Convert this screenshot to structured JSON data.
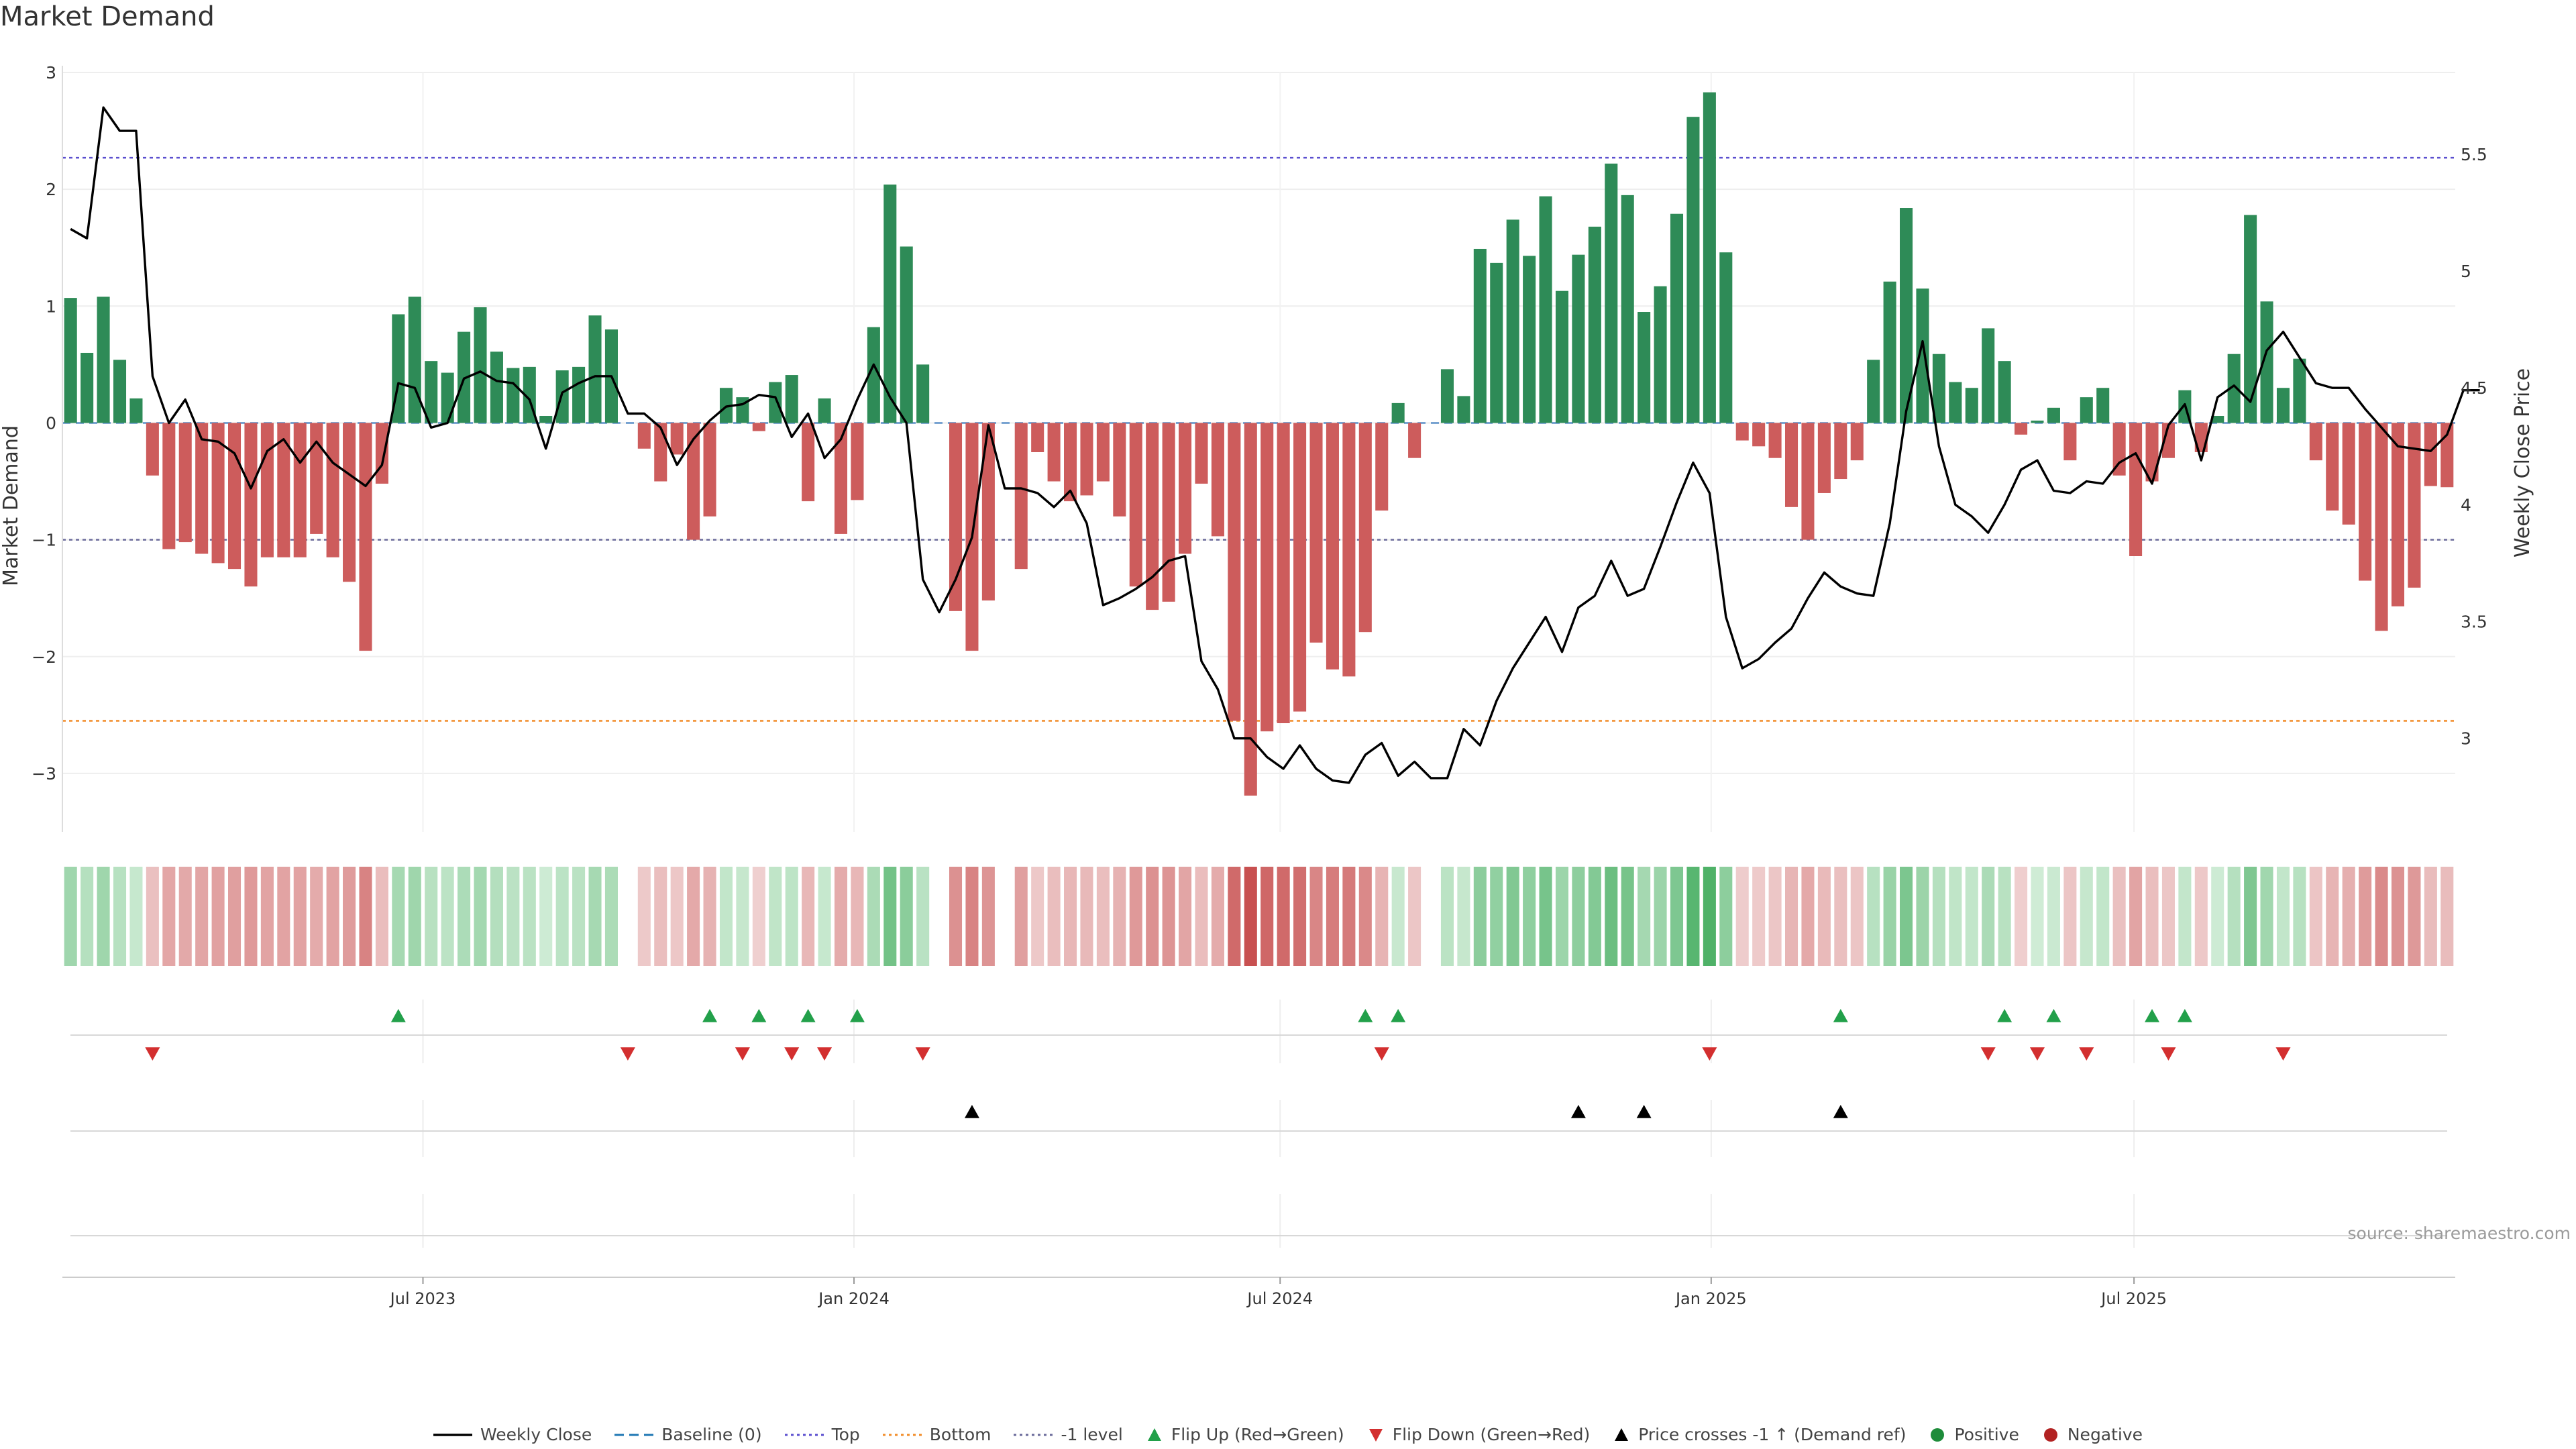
{
  "title": "Market Demand",
  "source": "source: sharemaestro.com",
  "colors": {
    "positive": "#2e8b57",
    "negative": "#cd5c5c",
    "price": "#000000",
    "top": "#5b4fcf",
    "bottom": "#f28c28",
    "minus_one": "#6a6a9a",
    "flip_up": "#22a04a",
    "flip_down": "#d32f2f",
    "cross": "#000000"
  },
  "legend": [
    {
      "key": "weekly-close",
      "label": "Weekly Close",
      "kind": "line",
      "color": "#000000"
    },
    {
      "key": "baseline",
      "label": "Baseline (0)",
      "kind": "dash",
      "color": "#1f77b4"
    },
    {
      "key": "top",
      "label": "Top",
      "kind": "dot",
      "color": "#5b4fcf"
    },
    {
      "key": "bottom",
      "label": "Bottom",
      "kind": "dot",
      "color": "#f28c28"
    },
    {
      "key": "minus-one",
      "label": "-1 level",
      "kind": "dot",
      "color": "#6a6a9a"
    },
    {
      "key": "flip-up",
      "label": "Flip Up (Red→Green)",
      "kind": "tri-up",
      "color": "#22a04a"
    },
    {
      "key": "flip-down",
      "label": "Flip Down (Green→Red)",
      "kind": "tri-down",
      "color": "#d32f2f"
    },
    {
      "key": "price-cross",
      "label": "Price crosses -1 ↑ (Demand ref)",
      "kind": "tri-up",
      "color": "#000000"
    },
    {
      "key": "positive",
      "label": "Positive",
      "kind": "circle",
      "color": "#1e8c3a"
    },
    {
      "key": "negative",
      "label": "Negative",
      "kind": "circle",
      "color": "#b22222"
    }
  ],
  "chart_data": {
    "type": "bar",
    "ylabel": "Market Demand",
    "y2label": "Weekly Close Price",
    "ylim": [
      -3.5,
      3.0
    ],
    "y2lim": [
      2.6,
      5.85
    ],
    "yticks": [
      3,
      2,
      1,
      0,
      -1,
      -2,
      -3
    ],
    "ytick_labels": [
      "3",
      "2",
      "1",
      "0",
      "−1",
      "−2",
      "−3"
    ],
    "y2ticks": [
      5.5,
      5,
      4.5,
      4,
      3.5,
      3
    ],
    "y2tick_labels": [
      "5.5",
      "5",
      "4.5",
      "4",
      "3.5",
      "3"
    ],
    "x_start": "2023-02-13",
    "x_end": "2025-10-20",
    "xticks": [
      {
        "label": "Jul 2023",
        "week": 22
      },
      {
        "label": "Jan 2024",
        "week": 48.3
      },
      {
        "label": "Jul 2024",
        "week": 74.3
      },
      {
        "label": "Jan 2025",
        "week": 100.6
      },
      {
        "label": "Jul 2025",
        "week": 126.4
      }
    ],
    "reference_lines": {
      "top": 2.27,
      "bottom": -2.55,
      "minus_one": -1.0,
      "baseline": 0
    },
    "demand": [
      1.07,
      0.6,
      1.08,
      0.54,
      0.21,
      -0.45,
      -1.08,
      -1.02,
      -1.12,
      -1.2,
      -1.25,
      -1.4,
      -1.15,
      -1.15,
      -1.15,
      -0.95,
      -1.15,
      -1.36,
      -1.95,
      -0.52,
      0.93,
      1.08,
      0.53,
      0.43,
      0.78,
      0.99,
      0.61,
      0.47,
      0.48,
      0.06,
      0.45,
      0.48,
      0.92,
      0.8,
      0,
      -0.22,
      -0.5,
      -0.27,
      -1.0,
      -0.8,
      0.3,
      0.22,
      -0.07,
      0.35,
      0.41,
      -0.67,
      0.21,
      -0.95,
      -0.66,
      0.82,
      2.04,
      1.51,
      0.5,
      0,
      -1.61,
      -1.95,
      -1.52,
      0,
      -1.25,
      -0.25,
      -0.5,
      -0.67,
      -0.62,
      -0.5,
      -0.8,
      -1.4,
      -1.6,
      -1.53,
      -1.12,
      -0.52,
      -0.97,
      -2.55,
      -3.19,
      -2.64,
      -2.57,
      -2.47,
      -1.88,
      -2.11,
      -2.17,
      -1.79,
      -0.75,
      0.17,
      -0.3,
      0,
      0.46,
      0.23,
      1.49,
      1.37,
      1.74,
      1.43,
      1.94,
      1.13,
      1.44,
      1.68,
      2.22,
      1.95,
      0.95,
      1.17,
      1.79,
      2.62,
      2.83,
      1.46,
      -0.15,
      -0.2,
      -0.3,
      -0.72,
      -1.0,
      -0.6,
      -0.48,
      -0.32,
      0.54,
      1.21,
      1.84,
      1.15,
      0.59,
      0.35,
      0.3,
      0.81,
      0.53,
      -0.1,
      0.02,
      0.13,
      -0.32,
      0.22,
      0.3,
      -0.45,
      -1.14,
      -0.5,
      -0.3,
      0.28,
      -0.25,
      0.06,
      0.59,
      1.78,
      1.04,
      0.3,
      0.55,
      -0.32,
      -0.75,
      -0.87,
      -1.35,
      -1.78,
      -1.57,
      -1.41,
      -0.54,
      -0.55
    ],
    "weekly_close": [
      5.18,
      5.14,
      5.7,
      5.6,
      5.6,
      4.55,
      4.35,
      4.45,
      4.28,
      4.27,
      4.22,
      4.07,
      4.23,
      4.28,
      4.18,
      4.27,
      4.18,
      4.13,
      4.08,
      4.17,
      4.52,
      4.5,
      4.33,
      4.35,
      4.54,
      4.57,
      4.53,
      4.52,
      4.45,
      4.24,
      4.48,
      4.52,
      4.55,
      4.55,
      4.39,
      4.39,
      4.33,
      4.17,
      4.28,
      4.36,
      4.42,
      4.43,
      4.47,
      4.46,
      4.29,
      4.39,
      4.2,
      4.28,
      4.45,
      4.6,
      4.46,
      4.35,
      3.68,
      3.54,
      3.68,
      3.86,
      4.34,
      4.07,
      4.07,
      4.05,
      3.99,
      4.06,
      3.92,
      3.57,
      3.6,
      3.64,
      3.69,
      3.76,
      3.78,
      3.33,
      3.21,
      3.0,
      3.0,
      2.92,
      2.87,
      2.97,
      2.87,
      2.82,
      2.81,
      2.93,
      2.98,
      2.84,
      2.9,
      2.83,
      2.83,
      3.04,
      2.97,
      3.16,
      3.3,
      3.41,
      3.52,
      3.37,
      3.56,
      3.61,
      3.76,
      3.61,
      3.64,
      3.82,
      4.01,
      4.18,
      4.05,
      3.52,
      3.3,
      3.34,
      3.41,
      3.47,
      3.6,
      3.71,
      3.65,
      3.62,
      3.61,
      3.92,
      4.4,
      4.7,
      4.25,
      4.0,
      3.95,
      3.88,
      4.0,
      4.15,
      4.19,
      4.06,
      4.05,
      4.1,
      4.09,
      4.18,
      4.22,
      4.09,
      4.34,
      4.43,
      4.19,
      4.46,
      4.51,
      4.44,
      4.66,
      4.74,
      4.63,
      4.52,
      4.5,
      4.5,
      4.41,
      4.33,
      4.25,
      4.24,
      4.23,
      4.3,
      4.49,
      4.49
    ],
    "flip_up_weeks": [
      20,
      39,
      42,
      45,
      48,
      79,
      81,
      108,
      118,
      121,
      127,
      129
    ],
    "flip_down_weeks": [
      5,
      34,
      41,
      44,
      46,
      52,
      80,
      100,
      117,
      120,
      123,
      128,
      135
    ],
    "price_cross_weeks": [
      55,
      92,
      96,
      108
    ]
  }
}
